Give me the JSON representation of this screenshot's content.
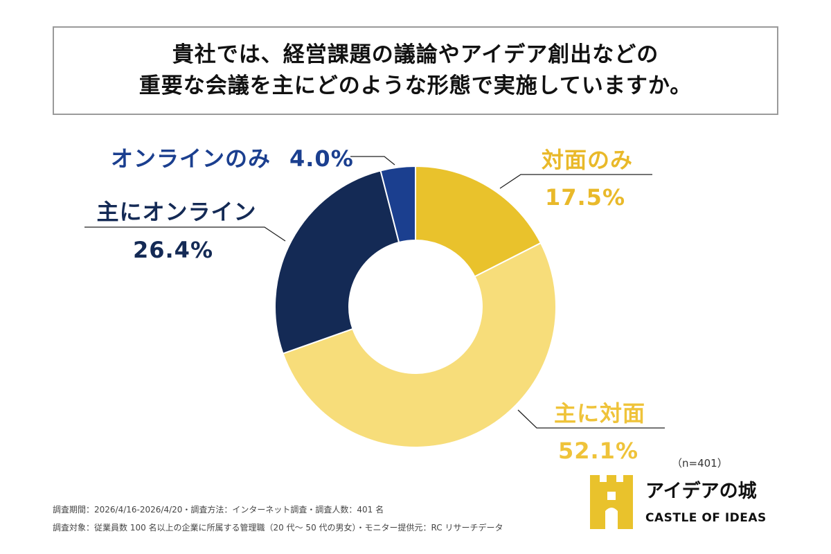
{
  "title": {
    "line1": "貴社では、経営課題の議論やアイデア創出などの",
    "line2": "重要な会議を主にどのような形態で実施していますか。"
  },
  "chart_data": {
    "type": "pie",
    "categories": [
      "対面のみ",
      "主に対面",
      "主にオンライン",
      "オンラインのみ"
    ],
    "values": [
      17.5,
      52.1,
      26.4,
      4.0
    ],
    "value_labels": [
      "17.5%",
      "52.1%",
      "26.4%",
      "4.0%"
    ],
    "colors": [
      "#E9C22C",
      "#F7DD7A",
      "#142A55",
      "#1B3F8F"
    ],
    "label_colors": [
      "#E9B92A",
      "#EFC33A",
      "#142A55",
      "#1B3F8F"
    ],
    "donut": true
  },
  "sample_size": "（n=401）",
  "footer": {
    "line1": "調査期間：2026/4/16-2026/4/20・調査方法：インターネット調査・調査人数：401 名",
    "line2": "調査対象：従業員数 100 名以上の企業に所属する管理職（20 代～ 50 代の男女）・モニター提供元：RC リサーチデータ"
  },
  "logo": {
    "name": "アイデアの城",
    "english": "CASTLE OF IDEAS",
    "color": "#E9C22C"
  }
}
